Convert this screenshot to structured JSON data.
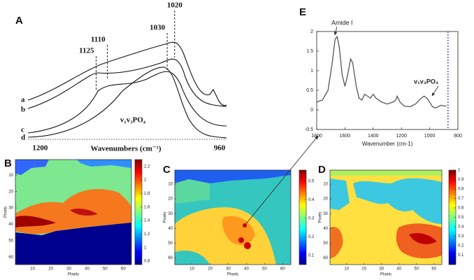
{
  "chart_data": [
    {
      "type": "spectra",
      "label": "A",
      "xlim": [
        1235,
        945
      ],
      "xticks": [
        1200,
        960
      ],
      "xlabel": "Wavenumbers (cm⁻¹)",
      "peaks": [
        1125,
        1110,
        1030,
        1020
      ],
      "curve_labels": [
        "a",
        "b",
        "c",
        "d"
      ],
      "annotation": "v₁v₃PO₄"
    },
    {
      "type": "line",
      "label": "E",
      "x": [
        1800,
        1760,
        1720,
        1690,
        1670,
        1655,
        1640,
        1620,
        1600,
        1580,
        1560,
        1545,
        1520,
        1500,
        1480,
        1460,
        1440,
        1420,
        1400,
        1380,
        1340,
        1300,
        1260,
        1240,
        1230,
        1210,
        1180,
        1140,
        1100,
        1060,
        1040,
        1020,
        1000,
        980,
        960,
        940,
        920,
        900,
        880
      ],
      "series": [
        {
          "color": "#555555",
          "values": [
            0.2,
            0.25,
            0.5,
            1.2,
            1.8,
            1.87,
            1.6,
            0.9,
            0.6,
            0.9,
            1.3,
            1.2,
            0.6,
            0.3,
            0.25,
            0.4,
            0.35,
            0.3,
            0.4,
            0.3,
            0.2,
            0.15,
            0.2,
            0.25,
            0.35,
            0.2,
            0.1,
            0.08,
            0.15,
            0.3,
            0.35,
            0.3,
            0.2,
            0.08,
            0.05,
            0.08,
            0.12,
            0.1,
            0.1
          ]
        }
      ],
      "xlim": [
        1800,
        800
      ],
      "xticks": [
        1800,
        1600,
        1400,
        1200,
        1000,
        800
      ],
      "ylim": [
        -0.5,
        2
      ],
      "yticks": [
        -0.5,
        0,
        0.5,
        1,
        1.5,
        2
      ],
      "xlabel": "Wavenumber (cm-1)",
      "annotations": [
        "Amide I",
        "v₁v₃PO₄"
      ],
      "vline": 870,
      "vline_color": "#0000cc"
    },
    {
      "type": "heatmap",
      "label": "B",
      "xlim": [
        0.5,
        64.5
      ],
      "xticks": [
        10,
        20,
        30,
        40,
        50,
        60
      ],
      "ylim": [
        0.5,
        64.5
      ],
      "yticks": [
        10,
        20,
        30,
        40,
        50,
        60
      ],
      "y_reversed": true,
      "xlabel": "Pixels",
      "ylabel": "Pixels",
      "clim": [
        0.75,
        2.3
      ],
      "cticks": [
        0.8,
        1,
        1.2,
        1.4,
        1.6,
        1.8,
        2,
        2.2
      ]
    },
    {
      "type": "heatmap",
      "label": "C",
      "xlim": [
        0.5,
        64.5
      ],
      "xticks": [
        10,
        20,
        30,
        40,
        50,
        60
      ],
      "ylim": [
        0.5,
        64.5
      ],
      "yticks": [
        10,
        20,
        30,
        40,
        50,
        60
      ],
      "y_reversed": true,
      "xlabel": "Pixels",
      "ylabel": "Pixels",
      "clim": [
        0.05,
        0.56
      ],
      "cticks": [
        0.1,
        0.2,
        0.3,
        0.4,
        0.5
      ]
    },
    {
      "type": "heatmap",
      "label": "D",
      "xlim": [
        0.5,
        64.5
      ],
      "xticks": [
        10,
        20,
        30,
        40,
        50,
        60
      ],
      "ylim": [
        0.5,
        64.5
      ],
      "yticks": [
        10,
        20,
        30,
        40,
        50,
        60
      ],
      "y_reversed": true,
      "xlabel": "Pixels",
      "ylabel": "Pixels",
      "clim": [
        0,
        1
      ],
      "cticks": [
        0.1,
        0.2,
        0.3,
        0.4,
        0.5,
        0.6,
        0.7,
        0.8,
        0.9,
        1
      ]
    }
  ]
}
